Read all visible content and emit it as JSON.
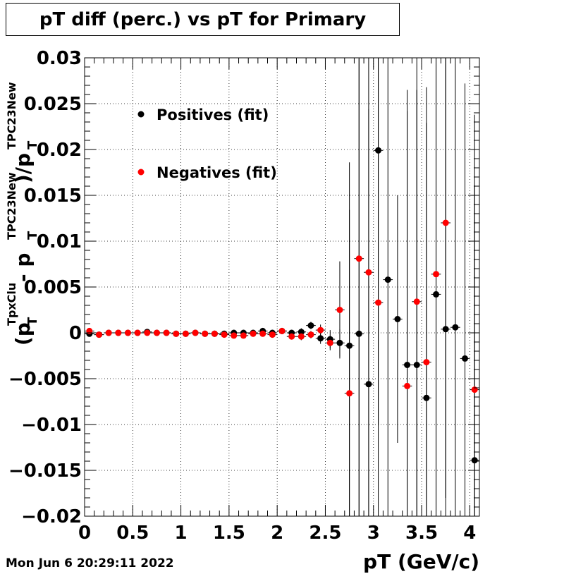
{
  "title": "pT diff (perc.) vs pT for Primary",
  "timestamp": "Mon Jun  6 20:29:11 2022",
  "chart_data": {
    "type": "scatter",
    "title": "pT diff (perc.) vs pT for Primary",
    "xlabel": "pT (GeV/c)",
    "ylabel_parts": {
      "open": "(p",
      "sub1": "T",
      "sup1": "TpxClu",
      "minus": " - p",
      "sub2": "T",
      "sup2": "TPC23New",
      "close": ")/p",
      "sub3": "T",
      "sup3": "TPC23New"
    },
    "xlim": [
      0,
      4.1
    ],
    "ylim": [
      -0.02,
      0.03
    ],
    "x_ticks": [
      {
        "v": 0,
        "label": "0"
      },
      {
        "v": 0.5,
        "label": "0.5"
      },
      {
        "v": 1,
        "label": "1"
      },
      {
        "v": 1.5,
        "label": "1.5"
      },
      {
        "v": 2,
        "label": "2"
      },
      {
        "v": 2.5,
        "label": "2.5"
      },
      {
        "v": 3,
        "label": "3"
      },
      {
        "v": 3.5,
        "label": "3.5"
      },
      {
        "v": 4,
        "label": "4"
      }
    ],
    "y_ticks": [
      {
        "v": -0.02,
        "label": "−0.02"
      },
      {
        "v": -0.015,
        "label": "−0.015"
      },
      {
        "v": -0.01,
        "label": "−0.01"
      },
      {
        "v": -0.005,
        "label": "−0.005"
      },
      {
        "v": 0,
        "label": "0"
      },
      {
        "v": 0.005,
        "label": "0.005"
      },
      {
        "v": 0.01,
        "label": "0.01"
      },
      {
        "v": 0.015,
        "label": "0.015"
      },
      {
        "v": 0.02,
        "label": "0.02"
      },
      {
        "v": 0.025,
        "label": "0.025"
      },
      {
        "v": 0.03,
        "label": "0.03"
      }
    ],
    "grid": true,
    "legend_position": "top-left",
    "bin_half_width": 0.05,
    "series": [
      {
        "name": "Positives (fit)",
        "color": "#000000",
        "points": [
          {
            "x": 0.05,
            "y": -0.0001,
            "err": 0.0002
          },
          {
            "x": 0.15,
            "y": -0.0002,
            "err": 0.0001
          },
          {
            "x": 0.25,
            "y": 0.0,
            "err": 0.0001
          },
          {
            "x": 0.35,
            "y": 0.0,
            "err": 0.0001
          },
          {
            "x": 0.45,
            "y": 0.0,
            "err": 0.0001
          },
          {
            "x": 0.55,
            "y": 0.0,
            "err": 0.0001
          },
          {
            "x": 0.65,
            "y": 0.0001,
            "err": 0.0001
          },
          {
            "x": 0.75,
            "y": 0.0,
            "err": 0.0001
          },
          {
            "x": 0.85,
            "y": 0.0,
            "err": 0.0001
          },
          {
            "x": 0.95,
            "y": -0.0001,
            "err": 0.0001
          },
          {
            "x": 1.05,
            "y": -0.0001,
            "err": 0.0001
          },
          {
            "x": 1.15,
            "y": 0.0,
            "err": 0.0001
          },
          {
            "x": 1.25,
            "y": -0.0001,
            "err": 0.0001
          },
          {
            "x": 1.35,
            "y": -0.0001,
            "err": 0.0001
          },
          {
            "x": 1.45,
            "y": -0.0001,
            "err": 0.0001
          },
          {
            "x": 1.55,
            "y": 0.0,
            "err": 0.0002
          },
          {
            "x": 1.65,
            "y": 0.0,
            "err": 0.0002
          },
          {
            "x": 1.75,
            "y": 0.0,
            "err": 0.0002
          },
          {
            "x": 1.85,
            "y": 0.0002,
            "err": 0.0002
          },
          {
            "x": 1.95,
            "y": 0.0,
            "err": 0.0003
          },
          {
            "x": 2.05,
            "y": 0.0002,
            "err": 0.0003
          },
          {
            "x": 2.15,
            "y": 0.0,
            "err": 0.0003
          },
          {
            "x": 2.25,
            "y": 0.0001,
            "err": 0.0004
          },
          {
            "x": 2.35,
            "y": 0.0008,
            "err": 0.0004
          },
          {
            "x": 2.45,
            "y": -0.0006,
            "err": 0.0006
          },
          {
            "x": 2.55,
            "y": -0.0007,
            "err": 0.001
          },
          {
            "x": 2.65,
            "y": -0.0011,
            "err": 0.0015
          },
          {
            "x": 2.75,
            "y": -0.0014,
            "err": 0.02
          },
          {
            "x": 2.85,
            "y": -0.0001,
            "err": 0.03
          },
          {
            "x": 2.95,
            "y": -0.0056,
            "err": 0.03
          },
          {
            "x": 3.05,
            "y": 0.0199,
            "err": 0.03
          },
          {
            "x": 3.15,
            "y": 0.0058,
            "err": 0.03
          },
          {
            "x": 3.25,
            "y": 0.0015,
            "err": 0.0135
          },
          {
            "x": 3.35,
            "y": -0.0035,
            "err": 0.03
          },
          {
            "x": 3.45,
            "y": -0.0035,
            "err": 0.03
          },
          {
            "x": 3.55,
            "y": -0.0071,
            "err": 0.03
          },
          {
            "x": 3.65,
            "y": 0.0042,
            "err": 0.03
          },
          {
            "x": 3.75,
            "y": 0.0004,
            "err": 0.03
          },
          {
            "x": 3.85,
            "y": 0.0006,
            "err": 0.03
          },
          {
            "x": 3.95,
            "y": -0.0028,
            "err": 0.03
          },
          {
            "x": 4.05,
            "y": -0.0139,
            "err": 0.03
          }
        ]
      },
      {
        "name": "Negatives (fit)",
        "color": "#ff0000",
        "points": [
          {
            "x": 0.05,
            "y": 0.0002,
            "err": 0.0002
          },
          {
            "x": 0.15,
            "y": -0.0002,
            "err": 0.0001
          },
          {
            "x": 0.25,
            "y": 0.0,
            "err": 0.0001
          },
          {
            "x": 0.35,
            "y": 0.0,
            "err": 0.0001
          },
          {
            "x": 0.45,
            "y": 0.0,
            "err": 0.0001
          },
          {
            "x": 0.55,
            "y": 0.0,
            "err": 0.0001
          },
          {
            "x": 0.65,
            "y": 0.0,
            "err": 0.0001
          },
          {
            "x": 0.75,
            "y": 0.0,
            "err": 0.0001
          },
          {
            "x": 0.85,
            "y": 0.0,
            "err": 0.0001
          },
          {
            "x": 0.95,
            "y": -0.0001,
            "err": 0.0001
          },
          {
            "x": 1.05,
            "y": -0.0001,
            "err": 0.0001
          },
          {
            "x": 1.15,
            "y": 0.0,
            "err": 0.0001
          },
          {
            "x": 1.25,
            "y": -0.0001,
            "err": 0.0001
          },
          {
            "x": 1.35,
            "y": -0.0001,
            "err": 0.0001
          },
          {
            "x": 1.45,
            "y": -0.0002,
            "err": 0.0001
          },
          {
            "x": 1.55,
            "y": -0.0003,
            "err": 0.0002
          },
          {
            "x": 1.65,
            "y": -0.0003,
            "err": 0.0002
          },
          {
            "x": 1.75,
            "y": -0.0001,
            "err": 0.0002
          },
          {
            "x": 1.85,
            "y": -0.0001,
            "err": 0.0002
          },
          {
            "x": 1.95,
            "y": -0.0002,
            "err": 0.0003
          },
          {
            "x": 2.05,
            "y": 0.0002,
            "err": 0.0003
          },
          {
            "x": 2.15,
            "y": -0.0004,
            "err": 0.0003
          },
          {
            "x": 2.25,
            "y": -0.0004,
            "err": 0.0004
          },
          {
            "x": 2.35,
            "y": -0.0002,
            "err": 0.0004
          },
          {
            "x": 2.45,
            "y": 0.0003,
            "err": 0.0006
          },
          {
            "x": 2.55,
            "y": -0.0011,
            "err": 0.0008
          },
          {
            "x": 2.65,
            "y": 0.0025,
            "err": 0.0053
          },
          {
            "x": 2.75,
            "y": -0.0066,
            "err": 0.02
          },
          {
            "x": 2.85,
            "y": 0.0081,
            "err": 0.03
          },
          {
            "x": 2.95,
            "y": 0.0066,
            "err": 0.03
          },
          {
            "x": 3.05,
            "y": 0.0033,
            "err": 0.03
          },
          {
            "x": 3.35,
            "y": -0.0058,
            "err": 0.03
          },
          {
            "x": 3.45,
            "y": 0.0034,
            "err": 0.03
          },
          {
            "x": 3.55,
            "y": -0.0032,
            "err": 0.03
          },
          {
            "x": 3.65,
            "y": 0.0064,
            "err": 0.03
          },
          {
            "x": 3.75,
            "y": 0.012,
            "err": 0.03
          },
          {
            "x": 4.05,
            "y": -0.0062,
            "err": 0.03
          }
        ]
      }
    ]
  }
}
